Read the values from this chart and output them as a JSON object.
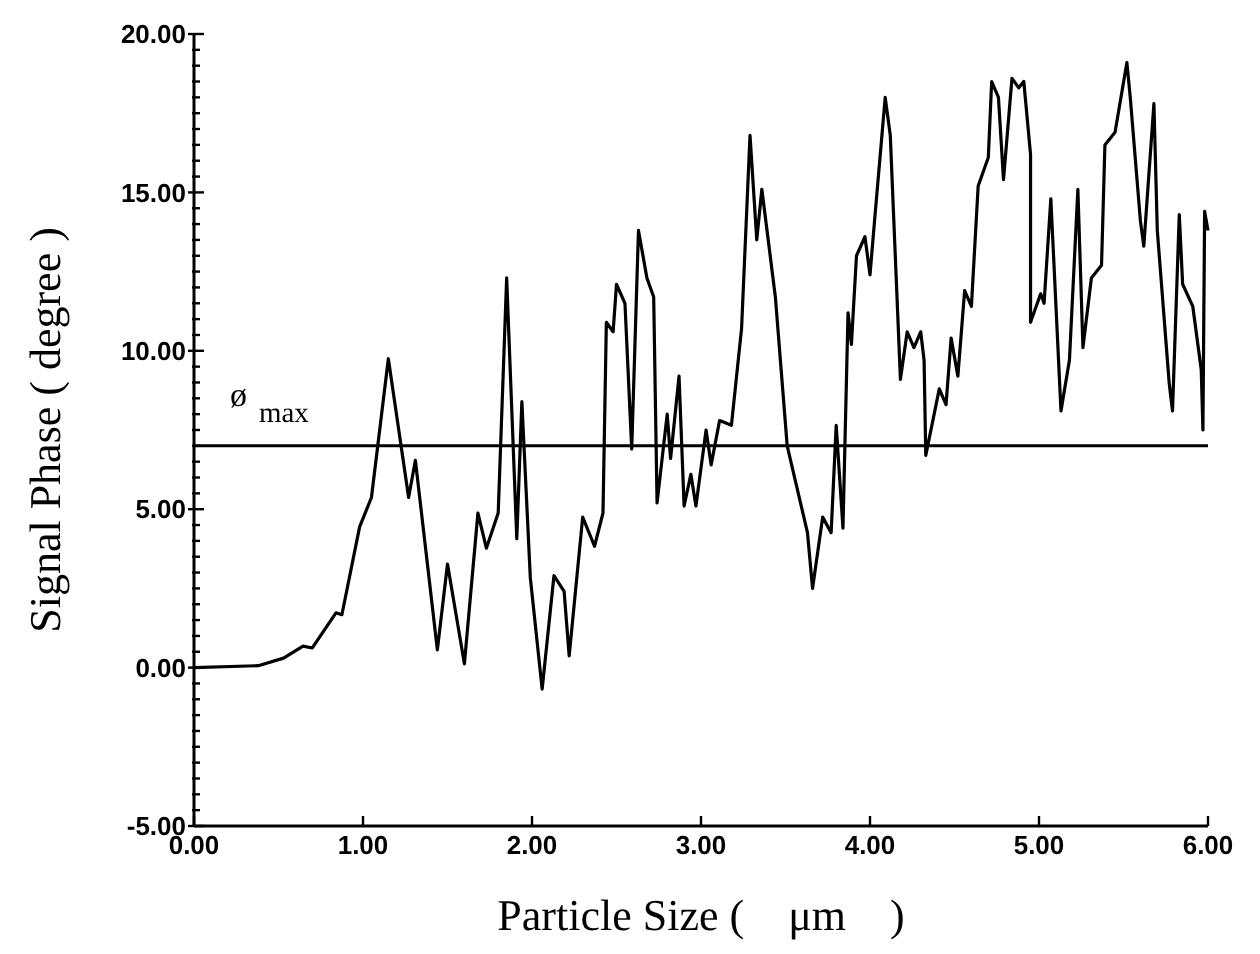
{
  "chart_data": {
    "type": "line",
    "xlabel": "Particle Size (    μm    )",
    "ylabel": "Signal Phase ( degree )",
    "xlim": [
      0,
      6
    ],
    "ylim": [
      -5,
      20
    ],
    "xticks": [
      {
        "value": 0,
        "label": "0.00"
      },
      {
        "value": 1,
        "label": "1.00"
      },
      {
        "value": 2,
        "label": "2.00"
      },
      {
        "value": 3,
        "label": "3.00"
      },
      {
        "value": 4,
        "label": "4.00"
      },
      {
        "value": 5,
        "label": "5.00"
      },
      {
        "value": 6,
        "label": "6.00"
      }
    ],
    "yticks": [
      {
        "value": -5,
        "label": "-5.00"
      },
      {
        "value": -4.5,
        "label": null
      },
      {
        "value": -4,
        "label": null
      },
      {
        "value": -3.5,
        "label": null
      },
      {
        "value": -3,
        "label": null
      },
      {
        "value": -2.5,
        "label": null
      },
      {
        "value": -2,
        "label": null
      },
      {
        "value": -1.5,
        "label": null
      },
      {
        "value": -1,
        "label": null
      },
      {
        "value": -0.5,
        "label": null
      },
      {
        "value": 0,
        "label": "0.00"
      },
      {
        "value": 0.5,
        "label": null
      },
      {
        "value": 1,
        "label": null
      },
      {
        "value": 1.5,
        "label": null
      },
      {
        "value": 2,
        "label": null
      },
      {
        "value": 2.5,
        "label": null
      },
      {
        "value": 3,
        "label": null
      },
      {
        "value": 3.5,
        "label": null
      },
      {
        "value": 4,
        "label": null
      },
      {
        "value": 4.5,
        "label": null
      },
      {
        "value": 5,
        "label": "5.00"
      },
      {
        "value": 5.5,
        "label": null
      },
      {
        "value": 6,
        "label": null
      },
      {
        "value": 6.5,
        "label": null
      },
      {
        "value": 7,
        "label": null
      },
      {
        "value": 7.5,
        "label": null
      },
      {
        "value": 8,
        "label": null
      },
      {
        "value": 8.5,
        "label": null
      },
      {
        "value": 9,
        "label": null
      },
      {
        "value": 9.5,
        "label": null
      },
      {
        "value": 10,
        "label": "10.00"
      },
      {
        "value": 10.5,
        "label": null
      },
      {
        "value": 11,
        "label": null
      },
      {
        "value": 11.5,
        "label": null
      },
      {
        "value": 12,
        "label": null
      },
      {
        "value": 12.5,
        "label": null
      },
      {
        "value": 13,
        "label": null
      },
      {
        "value": 13.5,
        "label": null
      },
      {
        "value": 14,
        "label": null
      },
      {
        "value": 14.5,
        "label": null
      },
      {
        "value": 15,
        "label": "15.00"
      },
      {
        "value": 15.5,
        "label": null
      },
      {
        "value": 16,
        "label": null
      },
      {
        "value": 16.5,
        "label": null
      },
      {
        "value": 17,
        "label": null
      },
      {
        "value": 17.5,
        "label": null
      },
      {
        "value": 18,
        "label": null
      },
      {
        "value": 18.5,
        "label": null
      },
      {
        "value": 19,
        "label": null
      },
      {
        "value": 19.5,
        "label": null
      },
      {
        "value": 20,
        "label": "20.00"
      }
    ],
    "grid": false,
    "marker": "none",
    "line_style": "solid",
    "ref_lines": [
      {
        "axis": "y",
        "value": 7,
        "label": "ø$_{max}$",
        "color": "#000000"
      }
    ],
    "series": [
      {
        "color": "#000000",
        "x": [
          0,
          0.38,
          0.53,
          0.645,
          0.7,
          0.84,
          0.875,
          0.98,
          1.05,
          1.15,
          1.27,
          1.31,
          1.44,
          1.5,
          1.6,
          1.68,
          1.73,
          1.8,
          1.85,
          1.91,
          1.94,
          1.99,
          2.06,
          2.13,
          2.19,
          2.22,
          2.3,
          2.37,
          2.42,
          2.44,
          2.48,
          2.5,
          2.55,
          2.59,
          2.63,
          2.68,
          2.72,
          2.74,
          2.8,
          2.82,
          2.87,
          2.9,
          2.94,
          2.97,
          3.03,
          3.06,
          3.11,
          3.18,
          3.24,
          3.29,
          3.33,
          3.36,
          3.44,
          3.51,
          3.63,
          3.66,
          3.72,
          3.77,
          3.8,
          3.84,
          3.87,
          3.89,
          3.92,
          3.97,
          4.0,
          4.03,
          4.09,
          4.12,
          4.18,
          4.22,
          4.26,
          4.3,
          4.32,
          4.33,
          4.41,
          4.45,
          4.48,
          4.52,
          4.56,
          4.6,
          4.64,
          4.7,
          4.72,
          4.76,
          4.79,
          4.84,
          4.88,
          4.91,
          4.95,
          4.95,
          5.01,
          5.03,
          5.07,
          5.13,
          5.18,
          5.23,
          5.26,
          5.31,
          5.37,
          5.39,
          5.45,
          5.52,
          5.54,
          5.6,
          5.62,
          5.68,
          5.7,
          5.77,
          5.79,
          5.83,
          5.85,
          5.91,
          5.96,
          5.97,
          5.98,
          6.0
        ],
        "values": [
          0,
          0.06,
          0.3,
          0.68,
          0.62,
          1.73,
          1.67,
          4.44,
          5.37,
          9.75,
          5.37,
          6.54,
          0.56,
          3.27,
          0.12,
          4.88,
          3.77,
          4.88,
          12.3,
          4.07,
          8.4,
          2.84,
          -0.68,
          2.9,
          2.41,
          0.37,
          4.75,
          3.83,
          4.88,
          10.9,
          10.6,
          12.1,
          11.5,
          6.9,
          13.8,
          12.3,
          11.7,
          5.2,
          8.0,
          6.6,
          9.2,
          5.1,
          6.1,
          5.1,
          7.5,
          6.4,
          7.8,
          7.65,
          10.7,
          16.8,
          13.5,
          15.1,
          11.7,
          7.0,
          4.26,
          2.5,
          4.75,
          4.26,
          7.65,
          4.4,
          11.2,
          10.2,
          13.0,
          13.6,
          12.4,
          14.3,
          18.0,
          16.8,
          9.1,
          10.6,
          10.1,
          10.6,
          9.7,
          6.7,
          8.8,
          8.3,
          10.4,
          9.2,
          11.9,
          11.4,
          15.2,
          16.1,
          18.5,
          18.0,
          15.4,
          18.6,
          18.3,
          18.5,
          16.2,
          10.9,
          11.8,
          11.5,
          14.8,
          8.1,
          9.7,
          15.1,
          10.1,
          12.3,
          12.7,
          16.5,
          16.9,
          19.1,
          18.0,
          14.1,
          13.3,
          17.8,
          13.8,
          9.0,
          8.1,
          14.3,
          12.1,
          11.4,
          9.4,
          7.5,
          14.4,
          13.8
        ]
      }
    ]
  }
}
